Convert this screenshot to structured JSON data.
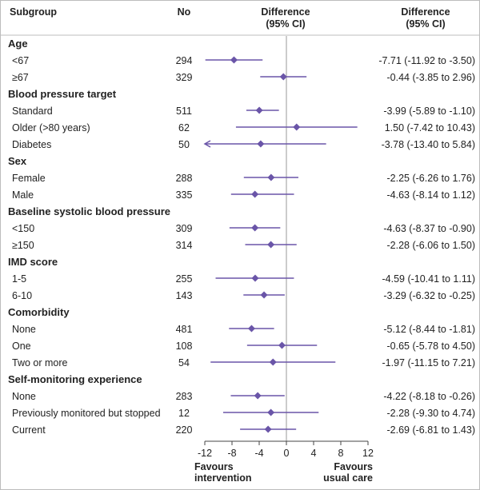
{
  "header": {
    "subgroup": "Subgroup",
    "no": "No",
    "difference_line1": "Difference",
    "difference_line2": "(95% CI)",
    "result_line1": "Difference",
    "result_line2": "(95% CI)"
  },
  "footer": {
    "left_line1": "Favours",
    "left_line2": "intervention",
    "right_line1": "Favours",
    "right_line2": "usual care"
  },
  "colors": {
    "marker": "#6a55a8",
    "line": "#6a55a8",
    "zero_line": "#9a9a9a"
  },
  "chart_data": {
    "type": "forest",
    "x_ticks": [
      -12,
      -8,
      -4,
      0,
      4,
      8,
      12
    ],
    "xlim": [
      -12,
      12
    ],
    "reference_line": 0,
    "groups": [
      {
        "name": "Age",
        "rows": [
          {
            "label": "<67",
            "n": "294",
            "est": -7.71,
            "lo": -11.92,
            "hi": -3.5,
            "text": "-7.71 (-11.92 to -3.50)"
          },
          {
            "label": "≥67",
            "n": "329",
            "est": -0.44,
            "lo": -3.85,
            "hi": 2.96,
            "text": "-0.44 (-3.85 to 2.96)"
          }
        ]
      },
      {
        "name": "Blood pressure target",
        "rows": [
          {
            "label": "Standard",
            "n": "511",
            "est": -3.99,
            "lo": -5.89,
            "hi": -1.1,
            "text": "-3.99 (-5.89 to -1.10)"
          },
          {
            "label": "Older (>80 years)",
            "n": "62",
            "est": 1.5,
            "lo": -7.42,
            "hi": 10.43,
            "text": "1.50 (-7.42 to 10.43)"
          },
          {
            "label": "Diabetes",
            "n": "50",
            "est": -3.78,
            "lo": -13.4,
            "hi": 5.84,
            "text": "-3.78 (-13.40 to 5.84)"
          }
        ]
      },
      {
        "name": "Sex",
        "rows": [
          {
            "label": "Female",
            "n": "288",
            "est": -2.25,
            "lo": -6.26,
            "hi": 1.76,
            "text": "-2.25 (-6.26 to 1.76)"
          },
          {
            "label": "Male",
            "n": "335",
            "est": -4.63,
            "lo": -8.14,
            "hi": 1.12,
            "text": "-4.63 (-8.14 to 1.12)"
          }
        ]
      },
      {
        "name": "Baseline systolic blood pressure",
        "rows": [
          {
            "label": "<150",
            "n": "309",
            "est": -4.63,
            "lo": -8.37,
            "hi": -0.9,
            "text": "-4.63 (-8.37 to -0.90)"
          },
          {
            "label": "≥150",
            "n": "314",
            "est": -2.28,
            "lo": -6.06,
            "hi": 1.5,
            "text": "-2.28 (-6.06 to 1.50)"
          }
        ]
      },
      {
        "name": "IMD score",
        "rows": [
          {
            "label": "1-5",
            "n": "255",
            "est": -4.59,
            "lo": -10.41,
            "hi": 1.11,
            "text": "-4.59 (-10.41 to 1.11)"
          },
          {
            "label": "6-10",
            "n": "143",
            "est": -3.29,
            "lo": -6.32,
            "hi": -0.25,
            "text": "-3.29 (-6.32 to -0.25)"
          }
        ]
      },
      {
        "name": "Comorbidity",
        "rows": [
          {
            "label": "None",
            "n": "481",
            "est": -5.12,
            "lo": -8.44,
            "hi": -1.81,
            "text": "-5.12 (-8.44 to -1.81)"
          },
          {
            "label": "One",
            "n": "108",
            "est": -0.65,
            "lo": -5.78,
            "hi": 4.5,
            "text": "-0.65 (-5.78 to 4.50)"
          },
          {
            "label": "Two or more",
            "n": "54",
            "est": -1.97,
            "lo": -11.15,
            "hi": 7.21,
            "text": "-1.97 (-11.15 to 7.21)"
          }
        ]
      },
      {
        "name": "Self-monitoring experience",
        "rows": [
          {
            "label": "None",
            "n": "283",
            "est": -4.22,
            "lo": -8.18,
            "hi": -0.26,
            "text": "-4.22 (-8.18 to -0.26)"
          },
          {
            "label": "Previously monitored but stopped",
            "n": "12",
            "est": -2.28,
            "lo": -9.3,
            "hi": 4.74,
            "text": "-2.28 (-9.30 to 4.74)"
          },
          {
            "label": "Current",
            "n": "220",
            "est": -2.69,
            "lo": -6.81,
            "hi": 1.43,
            "text": "-2.69 (-6.81 to 1.43)"
          }
        ]
      }
    ]
  }
}
